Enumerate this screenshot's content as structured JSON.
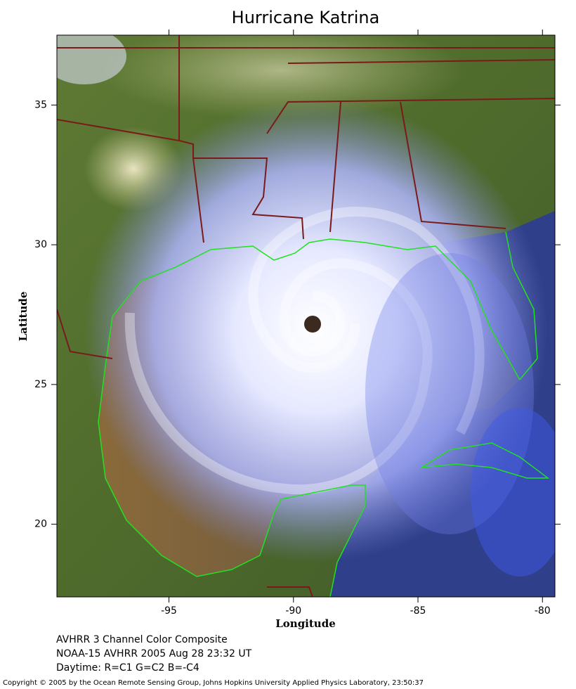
{
  "map": {
    "title": "Hurricane Katrina",
    "xlabel": "Longitude",
    "ylabel": "Latitude",
    "xlim": [
      -99.5,
      -79.5
    ],
    "ylim": [
      17.4,
      37.5
    ],
    "xticks": [
      -95,
      -90,
      -85,
      -80
    ],
    "yticks": [
      20,
      25,
      30,
      35
    ],
    "captions": [
      "AVHRR 3 Channel Color Composite",
      "NOAA-15 AVHRR 2005 Aug 28 23:32 UT",
      "Daytime: R=C1 G=C2 B=-C4"
    ],
    "copyright": "Copyright © 2005 by the Ocean Remote Sensing Group, Johns Hopkins University Applied Physics Laboratory, 23:50:37"
  }
}
